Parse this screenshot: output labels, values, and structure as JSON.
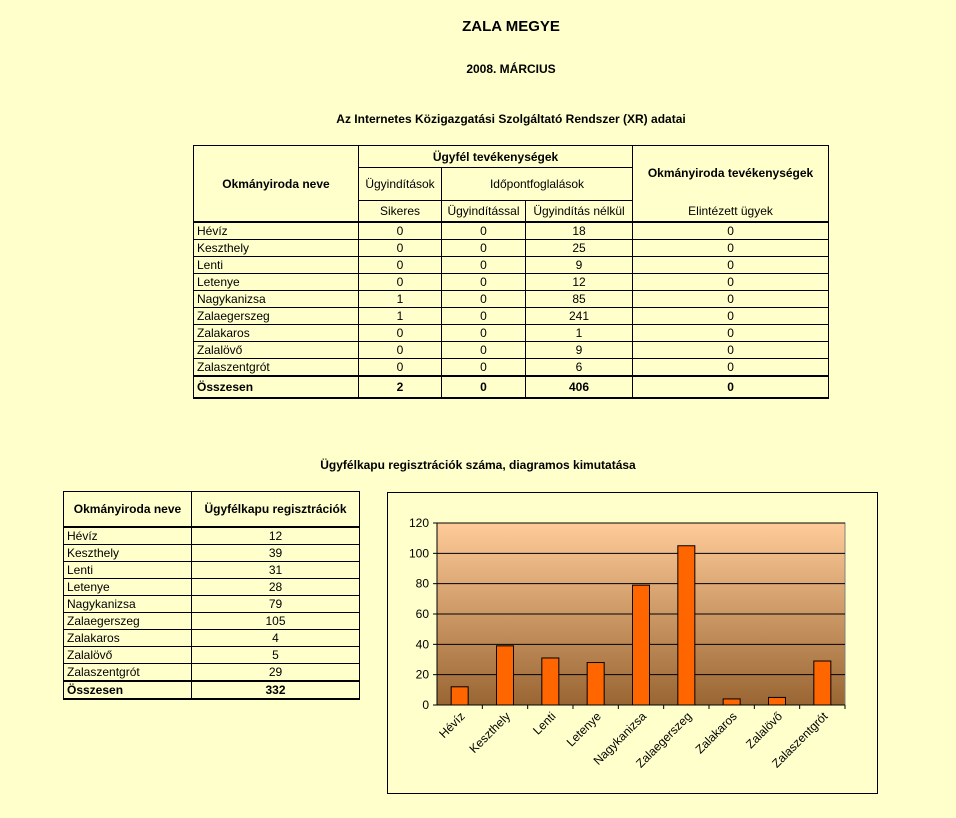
{
  "page": {
    "title": "ZALA MEGYE",
    "subtitle": "2008. MÁRCIUS",
    "heading1": "Az Internetes Közigazgatási Szolgáltató Rendszer (XR) adatai",
    "heading2": "Ügyfélkapu regisztrációk száma, diagramos kimutatása"
  },
  "table1": {
    "col_office": "Okmányiroda neve",
    "group_client": "Ügyfél tevékenységek",
    "group_office": "Okmányiroda tevékenységek",
    "sub_initiations": "Ügyindítások",
    "sub_appointments": "Időpontfoglalások",
    "sub_successful": "Sikeres",
    "sub_with_init": "Ügyindítással",
    "sub_without_init": "Ügyindítás nélkül",
    "sub_resolved": "Elintézett ügyek",
    "rows": [
      {
        "name": "Hévíz",
        "successful": "0",
        "with": "0",
        "without": "18",
        "resolved": "0"
      },
      {
        "name": "Keszthely",
        "successful": "0",
        "with": "0",
        "without": "25",
        "resolved": "0"
      },
      {
        "name": "Lenti",
        "successful": "0",
        "with": "0",
        "without": "9",
        "resolved": "0"
      },
      {
        "name": "Letenye",
        "successful": "0",
        "with": "0",
        "without": "12",
        "resolved": "0"
      },
      {
        "name": "Nagykanizsa",
        "successful": "1",
        "with": "0",
        "without": "85",
        "resolved": "0"
      },
      {
        "name": "Zalaegerszeg",
        "successful": "1",
        "with": "0",
        "without": "241",
        "resolved": "0"
      },
      {
        "name": "Zalakaros",
        "successful": "0",
        "with": "0",
        "without": "1",
        "resolved": "0"
      },
      {
        "name": "Zalalövő",
        "successful": "0",
        "with": "0",
        "without": "9",
        "resolved": "0"
      },
      {
        "name": "Zalaszentgrót",
        "successful": "0",
        "with": "0",
        "without": "6",
        "resolved": "0"
      }
    ],
    "total": {
      "name": "Összesen",
      "successful": "2",
      "with": "0",
      "without": "406",
      "resolved": "0"
    }
  },
  "table2": {
    "col_office": "Okmányiroda neve",
    "col_reg": "Ügyfélkapu regisztrációk",
    "rows": [
      {
        "name": "Hévíz",
        "value": "12"
      },
      {
        "name": "Keszthely",
        "value": "39"
      },
      {
        "name": "Lenti",
        "value": "31"
      },
      {
        "name": "Letenye",
        "value": "28"
      },
      {
        "name": "Nagykanizsa",
        "value": "79"
      },
      {
        "name": "Zalaegerszeg",
        "value": "105"
      },
      {
        "name": "Zalakaros",
        "value": "4"
      },
      {
        "name": "Zalalövő",
        "value": "5"
      },
      {
        "name": "Zalaszentgrót",
        "value": "29"
      }
    ],
    "total": {
      "name": "Összesen",
      "value": "332"
    }
  },
  "chart_data": {
    "type": "bar",
    "categories": [
      "Hévíz",
      "Keszthely",
      "Lenti",
      "Letenye",
      "Nagykanizsa",
      "Zalaegerszeg",
      "Zalakaros",
      "Zalalövő",
      "Zalaszentgrót"
    ],
    "values": [
      12,
      39,
      31,
      28,
      79,
      105,
      4,
      5,
      29
    ],
    "ylim": [
      0,
      120
    ],
    "yticks": [
      0,
      20,
      40,
      60,
      80,
      100,
      120
    ],
    "grid": true,
    "legend": "none",
    "bar_color": "#FF6600",
    "plot_gradient": [
      "#FFCC99",
      "#996633"
    ]
  }
}
